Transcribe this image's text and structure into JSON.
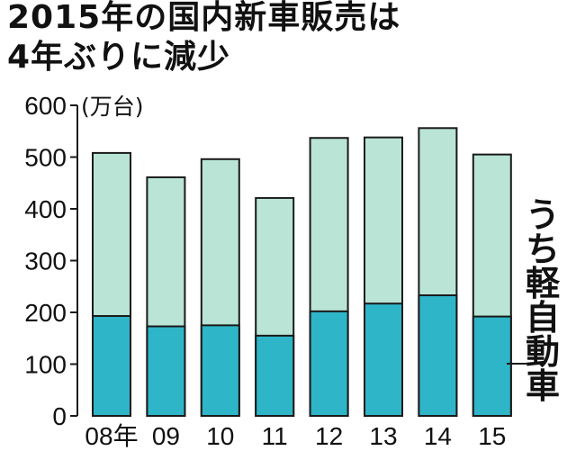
{
  "title_line1": "2015年の国内新車販売は",
  "title_line2": "4年ぶりに減少",
  "colors": {
    "total": "#b9e4d6",
    "light": "#2fb5c8",
    "stroke": "#1a1a1a"
  },
  "chart_data": {
    "type": "bar",
    "title": "2015年の国内新車販売は 4年ぶりに減少",
    "ylabel": "(万台)",
    "xlabel": "",
    "ylim": [
      0,
      600
    ],
    "yticks": [
      0,
      100,
      200,
      300,
      400,
      500,
      600
    ],
    "categories": [
      "08年",
      "09",
      "10",
      "11",
      "12",
      "13",
      "14",
      "15"
    ],
    "series": [
      {
        "name": "",
        "values": [
          508,
          461,
          496,
          421,
          537,
          538,
          556,
          505
        ]
      },
      {
        "name": "うち軽自動車",
        "values": [
          193,
          173,
          175,
          155,
          202,
          217,
          233,
          192
        ]
      }
    ],
    "annotation": "うち軽自動車"
  }
}
